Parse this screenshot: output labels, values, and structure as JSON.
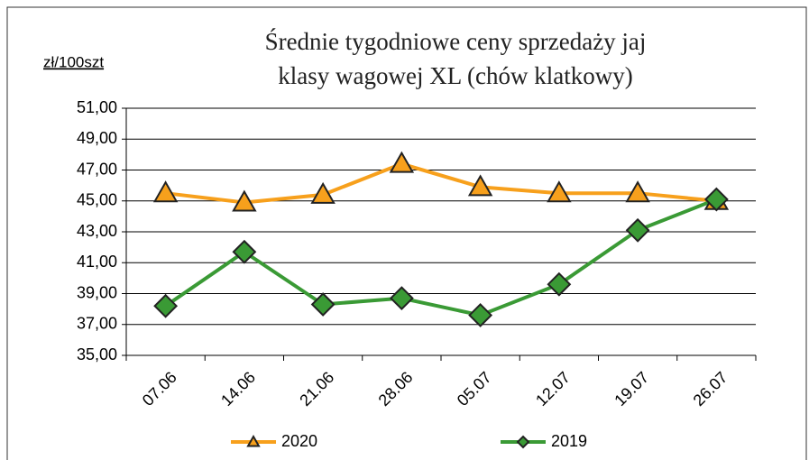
{
  "chart_data": {
    "type": "line",
    "title": [
      "Średnie tygodniowe ceny sprzedaży jaj",
      "klasy wagowej XL (chów klatkowy)"
    ],
    "y_axis_label": "zł/100szt",
    "categories": [
      "07.06",
      "14.06",
      "21.06",
      "28.06",
      "05.07",
      "12.07",
      "19.07",
      "26.07"
    ],
    "series": [
      {
        "name": "2020",
        "color": "#f7a01c",
        "marker": "triangle",
        "values": [
          45.5,
          44.9,
          45.4,
          47.4,
          45.9,
          45.5,
          45.5,
          45.0
        ]
      },
      {
        "name": "2019",
        "color": "#3a9a35",
        "marker": "diamond",
        "values": [
          38.2,
          41.7,
          38.3,
          38.7,
          37.6,
          39.6,
          43.1,
          45.1
        ]
      }
    ],
    "ylim": [
      35,
      51
    ],
    "yticks": [
      {
        "value": 35,
        "label": "35,00"
      },
      {
        "value": 37,
        "label": "37,00"
      },
      {
        "value": 39,
        "label": "39,00"
      },
      {
        "value": 41,
        "label": "41,00"
      },
      {
        "value": 43,
        "label": "43,00"
      },
      {
        "value": 45,
        "label": "45,00"
      },
      {
        "value": 47,
        "label": "47,00"
      },
      {
        "value": 49,
        "label": "49,00"
      },
      {
        "value": 51,
        "label": "51,00"
      }
    ],
    "grid": true,
    "legend": "bottom"
  }
}
